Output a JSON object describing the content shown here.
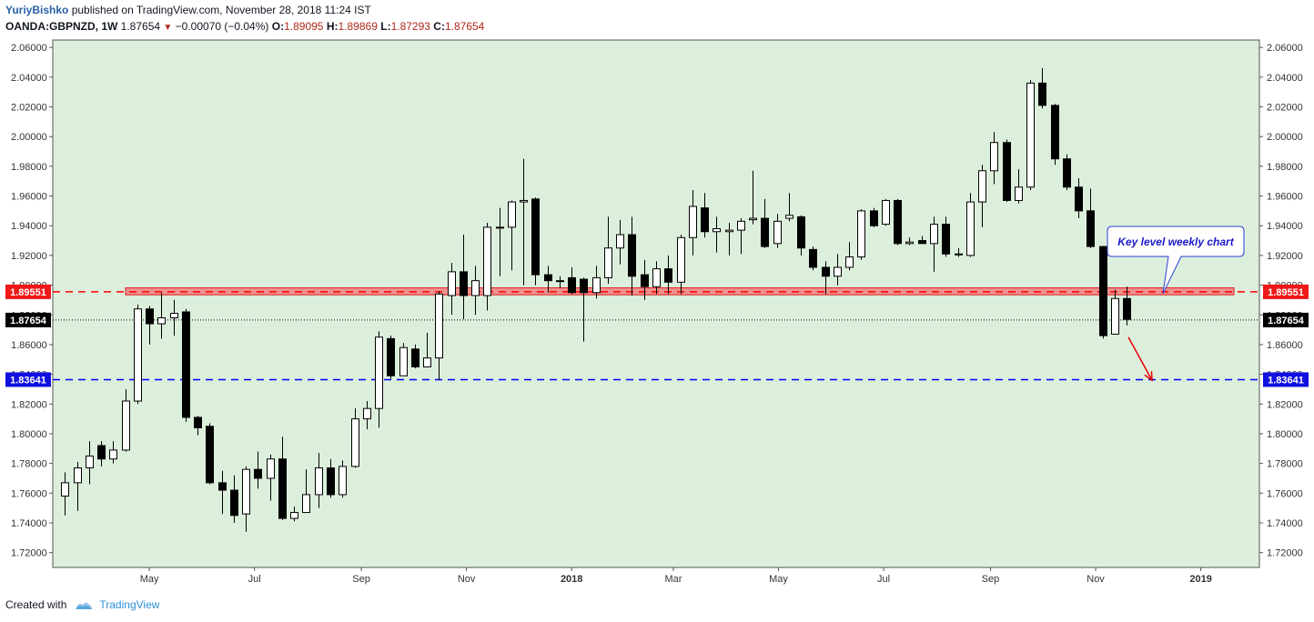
{
  "header": {
    "author": "YuriyBishko",
    "published": "published on TradingView.com, November 28, 2018 11:24 IST",
    "symbol": "OANDA:GBPNZD, 1W",
    "last": "1.87654",
    "change": "−0.00070 (−0.04%)",
    "o_label": "O:",
    "o": "1.89095",
    "h_label": "H:",
    "h": "1.89869",
    "l_label": "L:",
    "l": "1.87293",
    "c_label": "C:",
    "c": "1.87654"
  },
  "footer": {
    "created_with": "Created with",
    "brand": "TradingView"
  },
  "colors": {
    "background": "#dcefdc",
    "bull": "#ffffff",
    "bear": "#000000",
    "resistance": "#ff0000",
    "support": "#0000ff",
    "callout_text": "#1a1acc",
    "arrow": "#e60000"
  },
  "chart_data": {
    "type": "candlestick",
    "y_scale": "linear",
    "ylim": [
      1.71,
      2.065
    ],
    "y_ticks": [
      "2.06000",
      "2.04000",
      "2.02000",
      "2.00000",
      "1.98000",
      "1.96000",
      "1.94000",
      "1.92000",
      "1.90000",
      "1.88000",
      "1.86000",
      "1.84000",
      "1.82000",
      "1.80000",
      "1.78000",
      "1.76000",
      "1.74000",
      "1.72000"
    ],
    "x_labels": [
      "May",
      "Jul",
      "Sep",
      "Nov",
      "2018",
      "Mar",
      "May",
      "Jul",
      "Sep",
      "Nov",
      "2019"
    ],
    "x_label_dates": [
      "2017-05-01",
      "2017-07-01",
      "2017-09-01",
      "2017-11-01",
      "2018-01-01",
      "2018-03-01",
      "2018-05-01",
      "2018-07-01",
      "2018-09-01",
      "2018-11-01",
      "2019-01-01"
    ],
    "x_range": [
      "2017-03-06",
      "2019-02-04"
    ],
    "first_candle": "2017-03-13",
    "candles": [
      [
        1.758,
        1.767,
        1.745,
        1.774
      ],
      [
        1.767,
        1.777,
        1.748,
        1.781
      ],
      [
        1.777,
        1.785,
        1.766,
        1.795
      ],
      [
        1.792,
        1.783,
        1.778,
        1.795
      ],
      [
        1.783,
        1.789,
        1.78,
        1.795
      ],
      [
        1.789,
        1.822,
        1.788,
        1.83
      ],
      [
        1.822,
        1.884,
        1.82,
        1.887
      ],
      [
        1.884,
        1.874,
        1.86,
        1.886
      ],
      [
        1.874,
        1.878,
        1.864,
        1.895
      ],
      [
        1.878,
        1.881,
        1.866,
        1.89
      ],
      [
        1.882,
        1.811,
        1.808,
        1.884
      ],
      [
        1.811,
        1.804,
        1.799,
        1.812
      ],
      [
        1.805,
        1.767,
        1.766,
        1.807
      ],
      [
        1.767,
        1.762,
        1.746,
        1.775
      ],
      [
        1.762,
        1.745,
        1.74,
        1.772
      ],
      [
        1.746,
        1.776,
        1.734,
        1.778
      ],
      [
        1.776,
        1.77,
        1.763,
        1.788
      ],
      [
        1.77,
        1.783,
        1.755,
        1.786
      ],
      [
        1.783,
        1.743,
        1.742,
        1.798
      ],
      [
        1.743,
        1.747,
        1.741,
        1.751
      ],
      [
        1.747,
        1.759,
        1.747,
        1.776
      ],
      [
        1.759,
        1.777,
        1.75,
        1.787
      ],
      [
        1.777,
        1.759,
        1.757,
        1.783
      ],
      [
        1.759,
        1.778,
        1.757,
        1.782
      ],
      [
        1.778,
        1.81,
        1.777,
        1.817
      ],
      [
        1.81,
        1.817,
        1.803,
        1.822
      ],
      [
        1.817,
        1.865,
        1.804,
        1.869
      ],
      [
        1.864,
        1.839,
        1.837,
        1.866
      ],
      [
        1.839,
        1.858,
        1.84,
        1.861
      ],
      [
        1.857,
        1.845,
        1.844,
        1.86
      ],
      [
        1.845,
        1.851,
        1.845,
        1.868
      ],
      [
        1.851,
        1.894,
        1.836,
        1.896
      ],
      [
        1.893,
        1.909,
        1.88,
        1.915
      ],
      [
        1.909,
        1.893,
        1.877,
        1.934
      ],
      [
        1.893,
        1.903,
        1.88,
        1.913
      ],
      [
        1.893,
        1.939,
        1.883,
        1.942
      ],
      [
        1.939,
        1.939,
        1.906,
        1.952
      ],
      [
        1.939,
        1.956,
        1.91,
        1.957
      ],
      [
        1.956,
        1.957,
        1.9,
        1.985
      ],
      [
        1.958,
        1.907,
        1.9,
        1.959
      ],
      [
        1.907,
        1.903,
        1.895,
        1.913
      ],
      [
        1.903,
        1.903,
        1.898,
        1.906
      ],
      [
        1.905,
        1.895,
        1.894,
        1.912
      ],
      [
        1.904,
        1.895,
        1.862,
        1.905
      ],
      [
        1.895,
        1.905,
        1.891,
        1.913
      ],
      [
        1.905,
        1.925,
        1.901,
        1.946
      ],
      [
        1.925,
        1.934,
        1.914,
        1.944
      ],
      [
        1.934,
        1.906,
        1.893,
        1.946
      ],
      [
        1.907,
        1.899,
        1.89,
        1.917
      ],
      [
        1.899,
        1.911,
        1.894,
        1.916
      ],
      [
        1.911,
        1.902,
        1.894,
        1.92
      ],
      [
        1.902,
        1.932,
        1.894,
        1.934
      ],
      [
        1.932,
        1.953,
        1.92,
        1.964
      ],
      [
        1.952,
        1.936,
        1.932,
        1.962
      ],
      [
        1.936,
        1.938,
        1.922,
        1.946
      ],
      [
        1.936,
        1.937,
        1.92,
        1.942
      ],
      [
        1.937,
        1.943,
        1.921,
        1.945
      ],
      [
        1.944,
        1.945,
        1.941,
        1.977
      ],
      [
        1.945,
        1.926,
        1.925,
        1.958
      ],
      [
        1.928,
        1.943,
        1.925,
        1.948
      ],
      [
        1.945,
        1.947,
        1.943,
        1.962
      ],
      [
        1.946,
        1.925,
        1.92,
        1.947
      ],
      [
        1.924,
        1.912,
        1.91,
        1.926
      ],
      [
        1.912,
        1.906,
        1.894,
        1.916
      ],
      [
        1.906,
        1.912,
        1.9,
        1.921
      ],
      [
        1.912,
        1.919,
        1.91,
        1.929
      ],
      [
        1.919,
        1.95,
        1.917,
        1.951
      ],
      [
        1.95,
        1.94,
        1.939,
        1.952
      ],
      [
        1.941,
        1.957,
        1.94,
        1.958
      ],
      [
        1.957,
        1.928,
        1.927,
        1.958
      ],
      [
        1.928,
        1.929,
        1.927,
        1.932
      ],
      [
        1.93,
        1.928,
        1.928,
        1.933
      ],
      [
        1.928,
        1.941,
        1.909,
        1.946
      ],
      [
        1.941,
        1.921,
        1.919,
        1.946
      ],
      [
        1.921,
        1.921,
        1.919,
        1.925
      ],
      [
        1.92,
        1.956,
        1.919,
        1.962
      ],
      [
        1.956,
        1.977,
        1.939,
        1.981
      ],
      [
        1.977,
        1.996,
        1.968,
        2.003
      ],
      [
        1.996,
        1.957,
        1.956,
        1.998
      ],
      [
        1.957,
        1.966,
        1.955,
        1.978
      ],
      [
        1.966,
        2.036,
        1.964,
        2.038
      ],
      [
        2.036,
        2.021,
        2.019,
        2.046
      ],
      [
        2.021,
        1.985,
        1.981,
        2.022
      ],
      [
        1.985,
        1.966,
        1.964,
        1.988
      ],
      [
        1.966,
        1.95,
        1.945,
        1.972
      ],
      [
        1.95,
        1.926,
        1.925,
        1.965
      ],
      [
        1.926,
        1.866,
        1.864,
        1.926
      ],
      [
        1.867,
        1.891,
        1.867,
        1.897
      ],
      [
        1.891,
        1.877,
        1.873,
        1.899
      ]
    ],
    "levels": [
      {
        "value": 1.89551,
        "label": "1.89551",
        "style": "dashed",
        "color": "red",
        "zone": [
          1.8935,
          1.8982
        ]
      },
      {
        "value": 1.87654,
        "label": "1.87654",
        "style": "dotted",
        "color": "black"
      },
      {
        "value": 1.83641,
        "label": "1.83641",
        "style": "dashed",
        "color": "blue"
      }
    ],
    "annotations": [
      {
        "text": "Key level weekly chart"
      }
    ],
    "arrow_target": 1.836
  }
}
